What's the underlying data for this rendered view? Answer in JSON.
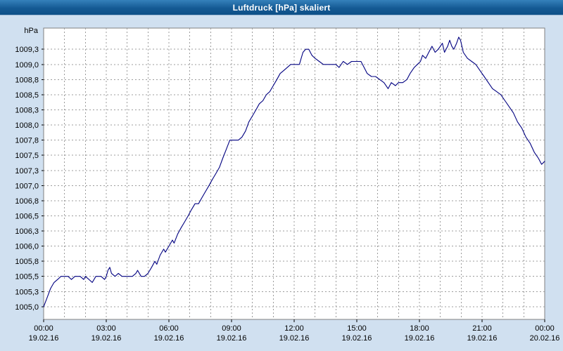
{
  "window": {
    "title": "Luftdruck [hPa] skaliert",
    "bar_color_top": "#3581bb",
    "bar_color_bottom": "#0d4f87",
    "title_text_color": "#ffffff",
    "page_background": "#d0e0f0"
  },
  "chart_data": {
    "type": "line",
    "title": "Luftdruck [hPa] skaliert",
    "ylabel": "hPa",
    "xlabel": "",
    "grid": true,
    "legend": false,
    "line_color": "#000080",
    "grid_color": "#9c9c9c",
    "plot_border_color": "#808080",
    "plot_background": "#ffffff",
    "ylim": [
      1004.79,
      1009.6
    ],
    "xlim_hours": [
      0,
      24
    ],
    "x_grid_step_hours": 1,
    "y_ticks": [
      {
        "value": 1009.25,
        "label": "1009,3"
      },
      {
        "value": 1009.0,
        "label": "1009,0"
      },
      {
        "value": 1008.75,
        "label": "1008,8"
      },
      {
        "value": 1008.5,
        "label": "1008,5"
      },
      {
        "value": 1008.25,
        "label": "1008,3"
      },
      {
        "value": 1008.0,
        "label": "1008,0"
      },
      {
        "value": 1007.75,
        "label": "1007,8"
      },
      {
        "value": 1007.5,
        "label": "1007,5"
      },
      {
        "value": 1007.25,
        "label": "1007,3"
      },
      {
        "value": 1007.0,
        "label": "1007,0"
      },
      {
        "value": 1006.75,
        "label": "1006,8"
      },
      {
        "value": 1006.5,
        "label": "1006,5"
      },
      {
        "value": 1006.25,
        "label": "1006,3"
      },
      {
        "value": 1006.0,
        "label": "1006,0"
      },
      {
        "value": 1005.75,
        "label": "1005,8"
      },
      {
        "value": 1005.5,
        "label": "1005,5"
      },
      {
        "value": 1005.25,
        "label": "1005,3"
      },
      {
        "value": 1005.0,
        "label": "1005,0"
      }
    ],
    "x_ticks": [
      {
        "hour": 0,
        "time": "00:00",
        "date": "19.02.16"
      },
      {
        "hour": 3,
        "time": "03:00",
        "date": "19.02.16"
      },
      {
        "hour": 6,
        "time": "06:00",
        "date": "19.02.16"
      },
      {
        "hour": 9,
        "time": "09:00",
        "date": "19.02.16"
      },
      {
        "hour": 12,
        "time": "12:00",
        "date": "19.02.16"
      },
      {
        "hour": 15,
        "time": "15:00",
        "date": "19.02.16"
      },
      {
        "hour": 18,
        "time": "18:00",
        "date": "19.02.16"
      },
      {
        "hour": 21,
        "time": "21:00",
        "date": "19.02.16"
      },
      {
        "hour": 24,
        "time": "00:00",
        "date": "20.02.16"
      }
    ],
    "series": [
      {
        "name": "Luftdruck",
        "unit": "hPa",
        "points": [
          [
            0,
            1005.0
          ],
          [
            0.17,
            1005.15
          ],
          [
            0.33,
            1005.3
          ],
          [
            0.5,
            1005.4
          ],
          [
            0.67,
            1005.45
          ],
          [
            0.83,
            1005.5
          ],
          [
            1,
            1005.5
          ],
          [
            1.17,
            1005.5
          ],
          [
            1.33,
            1005.45
          ],
          [
            1.5,
            1005.5
          ],
          [
            1.75,
            1005.5
          ],
          [
            1.92,
            1005.45
          ],
          [
            2,
            1005.5
          ],
          [
            2.17,
            1005.45
          ],
          [
            2.33,
            1005.4
          ],
          [
            2.5,
            1005.5
          ],
          [
            2.75,
            1005.5
          ],
          [
            2.92,
            1005.45
          ],
          [
            3,
            1005.5
          ],
          [
            3.08,
            1005.6
          ],
          [
            3.17,
            1005.65
          ],
          [
            3.25,
            1005.55
          ],
          [
            3.42,
            1005.5
          ],
          [
            3.58,
            1005.55
          ],
          [
            3.75,
            1005.5
          ],
          [
            4,
            1005.5
          ],
          [
            4.25,
            1005.5
          ],
          [
            4.42,
            1005.55
          ],
          [
            4.5,
            1005.6
          ],
          [
            4.67,
            1005.5
          ],
          [
            4.83,
            1005.5
          ],
          [
            5,
            1005.55
          ],
          [
            5.17,
            1005.65
          ],
          [
            5.33,
            1005.75
          ],
          [
            5.42,
            1005.7
          ],
          [
            5.58,
            1005.85
          ],
          [
            5.75,
            1005.95
          ],
          [
            5.83,
            1005.9
          ],
          [
            6,
            1006.0
          ],
          [
            6.17,
            1006.1
          ],
          [
            6.25,
            1006.05
          ],
          [
            6.42,
            1006.2
          ],
          [
            6.58,
            1006.3
          ],
          [
            6.75,
            1006.4
          ],
          [
            6.92,
            1006.5
          ],
          [
            7.08,
            1006.6
          ],
          [
            7.25,
            1006.7
          ],
          [
            7.42,
            1006.7
          ],
          [
            7.58,
            1006.8
          ],
          [
            7.75,
            1006.9
          ],
          [
            7.92,
            1007.0
          ],
          [
            8.08,
            1007.1
          ],
          [
            8.25,
            1007.2
          ],
          [
            8.42,
            1007.3
          ],
          [
            8.58,
            1007.45
          ],
          [
            8.75,
            1007.6
          ],
          [
            8.92,
            1007.75
          ],
          [
            9.08,
            1007.75
          ],
          [
            9.33,
            1007.75
          ],
          [
            9.5,
            1007.8
          ],
          [
            9.67,
            1007.9
          ],
          [
            9.83,
            1008.05
          ],
          [
            10,
            1008.15
          ],
          [
            10.17,
            1008.25
          ],
          [
            10.33,
            1008.35
          ],
          [
            10.5,
            1008.4
          ],
          [
            10.67,
            1008.5
          ],
          [
            10.83,
            1008.55
          ],
          [
            11,
            1008.65
          ],
          [
            11.17,
            1008.75
          ],
          [
            11.33,
            1008.85
          ],
          [
            11.5,
            1008.9
          ],
          [
            11.67,
            1008.95
          ],
          [
            11.83,
            1009.0
          ],
          [
            12,
            1009.0
          ],
          [
            12.25,
            1009.0
          ],
          [
            12.42,
            1009.2
          ],
          [
            12.55,
            1009.25
          ],
          [
            12.7,
            1009.25
          ],
          [
            12.85,
            1009.15
          ],
          [
            13,
            1009.1
          ],
          [
            13.2,
            1009.05
          ],
          [
            13.4,
            1009.0
          ],
          [
            13.7,
            1009.0
          ],
          [
            14,
            1009.0
          ],
          [
            14.15,
            1008.95
          ],
          [
            14.35,
            1009.05
          ],
          [
            14.55,
            1009.0
          ],
          [
            14.75,
            1009.05
          ],
          [
            15,
            1009.05
          ],
          [
            15.2,
            1009.05
          ],
          [
            15.35,
            1008.95
          ],
          [
            15.5,
            1008.85
          ],
          [
            15.7,
            1008.8
          ],
          [
            15.9,
            1008.8
          ],
          [
            16.1,
            1008.75
          ],
          [
            16.3,
            1008.7
          ],
          [
            16.5,
            1008.6
          ],
          [
            16.65,
            1008.7
          ],
          [
            16.85,
            1008.65
          ],
          [
            17,
            1008.7
          ],
          [
            17.2,
            1008.7
          ],
          [
            17.4,
            1008.75
          ],
          [
            17.55,
            1008.85
          ],
          [
            17.75,
            1008.95
          ],
          [
            17.9,
            1009.0
          ],
          [
            18.05,
            1009.05
          ],
          [
            18.15,
            1009.15
          ],
          [
            18.3,
            1009.1
          ],
          [
            18.45,
            1009.2
          ],
          [
            18.6,
            1009.3
          ],
          [
            18.75,
            1009.2
          ],
          [
            18.9,
            1009.25
          ],
          [
            19,
            1009.3
          ],
          [
            19.1,
            1009.35
          ],
          [
            19.2,
            1009.2
          ],
          [
            19.35,
            1009.3
          ],
          [
            19.45,
            1009.4
          ],
          [
            19.55,
            1009.3
          ],
          [
            19.65,
            1009.25
          ],
          [
            19.78,
            1009.35
          ],
          [
            19.88,
            1009.45
          ],
          [
            19.97,
            1009.4
          ],
          [
            20.1,
            1009.2
          ],
          [
            20.3,
            1009.1
          ],
          [
            20.5,
            1009.05
          ],
          [
            20.7,
            1009.0
          ],
          [
            20.9,
            1008.9
          ],
          [
            21.1,
            1008.8
          ],
          [
            21.3,
            1008.7
          ],
          [
            21.5,
            1008.6
          ],
          [
            21.7,
            1008.55
          ],
          [
            21.9,
            1008.5
          ],
          [
            22.1,
            1008.4
          ],
          [
            22.3,
            1008.3
          ],
          [
            22.5,
            1008.2
          ],
          [
            22.7,
            1008.05
          ],
          [
            22.9,
            1007.95
          ],
          [
            23.1,
            1007.8
          ],
          [
            23.3,
            1007.7
          ],
          [
            23.5,
            1007.55
          ],
          [
            23.7,
            1007.45
          ],
          [
            23.85,
            1007.35
          ],
          [
            24,
            1007.4
          ]
        ]
      }
    ]
  }
}
